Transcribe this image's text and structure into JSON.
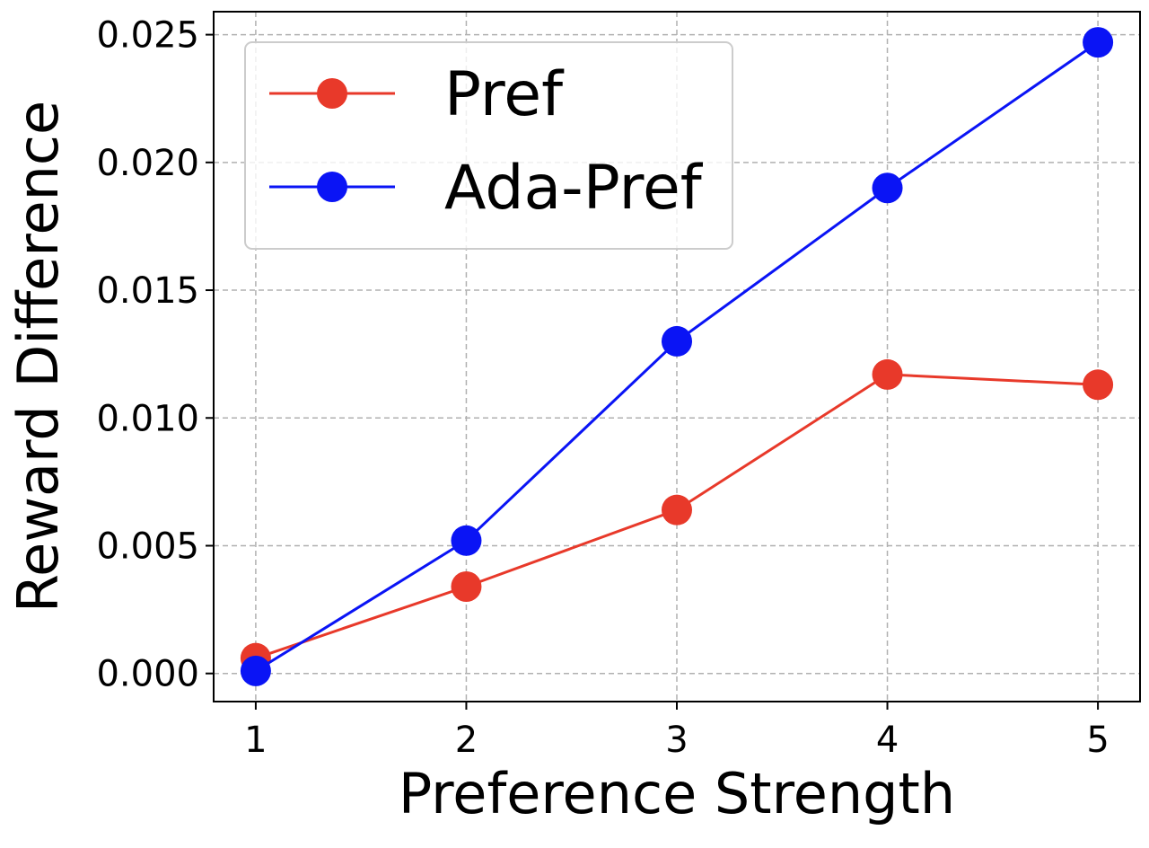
{
  "chart_data": {
    "type": "line",
    "title": "",
    "xlabel": "Preference Strength",
    "ylabel": "Reward Difference",
    "x": [
      1,
      2,
      3,
      4,
      5
    ],
    "x_ticks": [
      "1",
      "2",
      "3",
      "4",
      "5"
    ],
    "y_ticks": [
      "0.000",
      "0.005",
      "0.010",
      "0.015",
      "0.020",
      "0.025"
    ],
    "xlim": [
      0.8,
      5.2
    ],
    "ylim": [
      -0.0011,
      0.0259
    ],
    "grid": true,
    "legend_position": "upper-left",
    "series": [
      {
        "name": "Pref",
        "color": "#e8392a",
        "marker": "circle",
        "values": [
          0.0006,
          0.0034,
          0.0064,
          0.0117,
          0.0113
        ]
      },
      {
        "name": "Ada-Pref",
        "color": "#0a14f5",
        "marker": "circle",
        "values": [
          0.0001,
          0.0052,
          0.013,
          0.019,
          0.0247
        ]
      }
    ]
  }
}
